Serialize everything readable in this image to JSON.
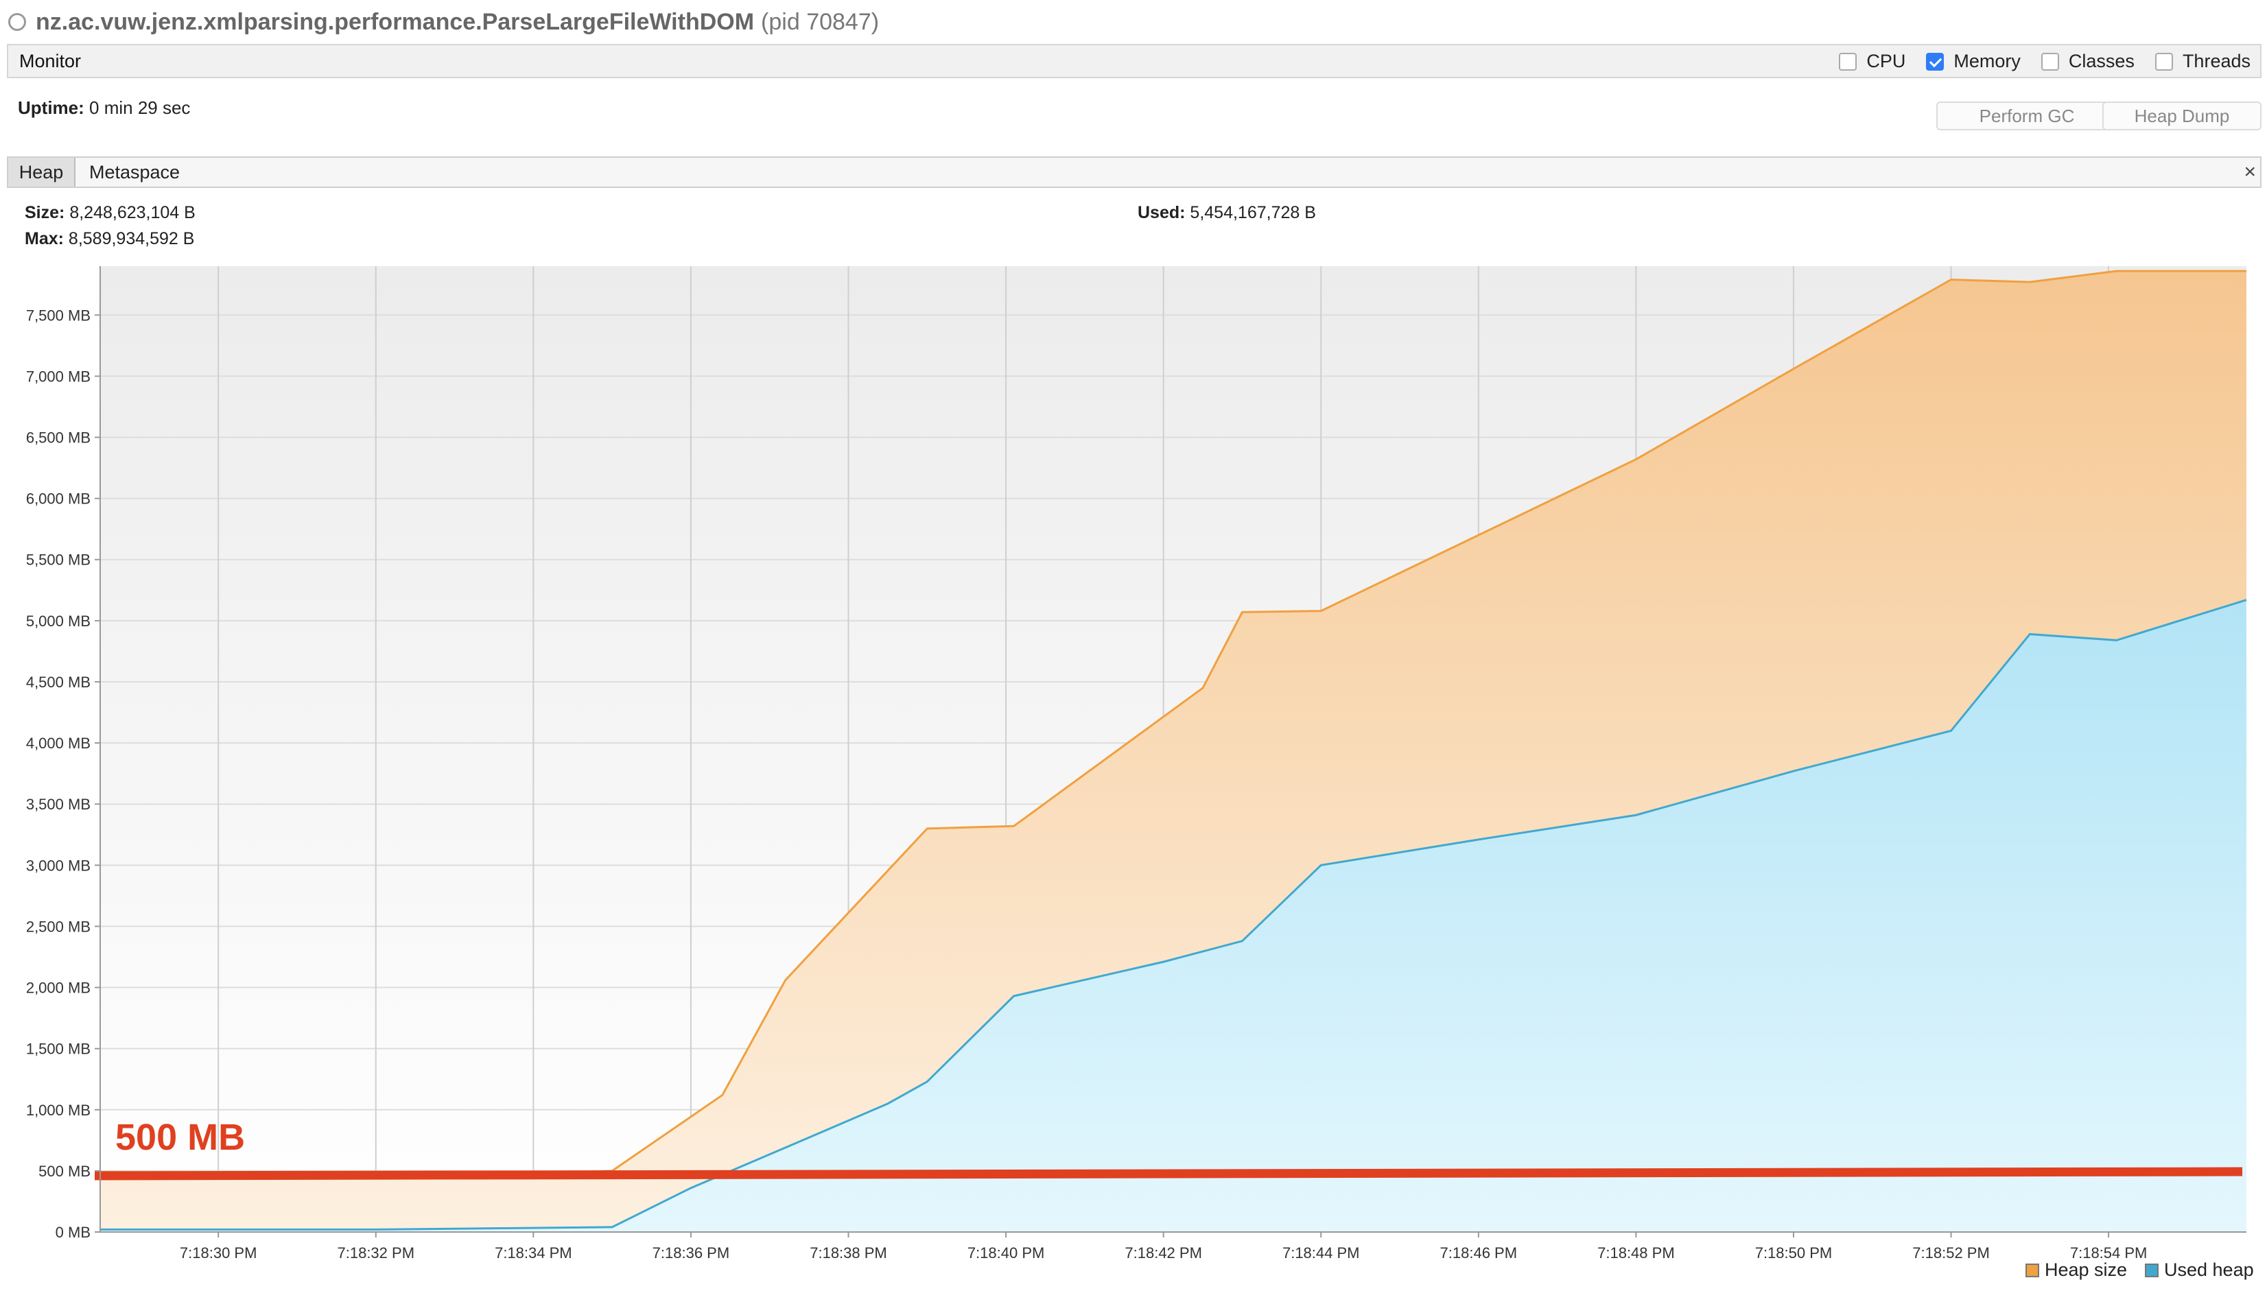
{
  "window": {
    "title": "nz.ac.vuw.jenz.xmlparsing.performance.ParseLargeFileWithDOM",
    "pid": "(pid 70847)"
  },
  "monitor": {
    "label": "Monitor",
    "checkboxes": [
      {
        "label": "CPU",
        "checked": false
      },
      {
        "label": "Memory",
        "checked": true
      },
      {
        "label": "Classes",
        "checked": false
      },
      {
        "label": "Threads",
        "checked": false
      }
    ]
  },
  "uptime": {
    "label": "Uptime:",
    "value": "0 min 29 sec"
  },
  "buttons": {
    "gc": "Perform GC",
    "dump": "Heap Dump"
  },
  "tabs": {
    "heap": "Heap",
    "metaspace": "Metaspace",
    "close": "×"
  },
  "heap_info": {
    "size_label": "Size:",
    "size_value": "8,248,623,104 B",
    "max_label": "Max:",
    "max_value": "8,589,934,592 B",
    "used_label": "Used:",
    "used_value": "5,454,167,728 B"
  },
  "colors": {
    "heap_line": "#f0a040",
    "used_line": "#40a8d0",
    "highlight": "#e04020"
  },
  "chart_data": {
    "type": "area",
    "xlabel": "",
    "ylabel": "",
    "ylim": [
      0,
      7900
    ],
    "yticks": [
      "0 MB",
      "500 MB",
      "1,000 MB",
      "1,500 MB",
      "2,000 MB",
      "2,500 MB",
      "3,000 MB",
      "3,500 MB",
      "4,000 MB",
      "4,500 MB",
      "5,000 MB",
      "5,500 MB",
      "6,000 MB",
      "6,500 MB",
      "7,000 MB",
      "7,500 MB"
    ],
    "xlim": [
      28.5,
      55.75
    ],
    "xticks": [
      {
        "t": 30,
        "label": "7:18:30 PM"
      },
      {
        "t": 32,
        "label": "7:18:32 PM"
      },
      {
        "t": 34,
        "label": "7:18:34 PM"
      },
      {
        "t": 36,
        "label": "7:18:36 PM"
      },
      {
        "t": 38,
        "label": "7:18:38 PM"
      },
      {
        "t": 40,
        "label": "7:18:40 PM"
      },
      {
        "t": 42,
        "label": "7:18:42 PM"
      },
      {
        "t": 44,
        "label": "7:18:44 PM"
      },
      {
        "t": 46,
        "label": "7:18:46 PM"
      },
      {
        "t": 48,
        "label": "7:18:48 PM"
      },
      {
        "t": 50,
        "label": "7:18:50 PM"
      },
      {
        "t": 52,
        "label": "7:18:52 PM"
      },
      {
        "t": 54,
        "label": "7:18:54 PM"
      }
    ],
    "series": [
      {
        "name": "Heap size",
        "x": [
          28.5,
          34.5,
          35.0,
          36.4,
          37.2,
          39.0,
          40.1,
          42.5,
          43.0,
          44.0,
          46.0,
          48.0,
          50.0,
          52.0,
          53.0,
          54.1,
          55.75
        ],
        "values": [
          490,
          490,
          500,
          1120,
          2060,
          3300,
          3320,
          4450,
          5070,
          5080,
          5700,
          6320,
          7060,
          7790,
          7770,
          7860,
          7860
        ]
      },
      {
        "name": "Used heap",
        "x": [
          28.5,
          32.0,
          33.5,
          35.0,
          36.0,
          37.2,
          38.5,
          39.0,
          40.1,
          42.0,
          43.0,
          44.0,
          46.0,
          48.0,
          50.0,
          52.0,
          53.0,
          54.1,
          55.75
        ],
        "values": [
          20,
          20,
          30,
          40,
          360,
          690,
          1050,
          1230,
          1930,
          2210,
          2380,
          3000,
          3210,
          3410,
          3770,
          4100,
          4890,
          4840,
          5170
        ]
      }
    ],
    "annotation": {
      "text": "500 MB",
      "y": 460
    }
  },
  "legend": {
    "heap": "Heap size",
    "used": "Used heap"
  }
}
